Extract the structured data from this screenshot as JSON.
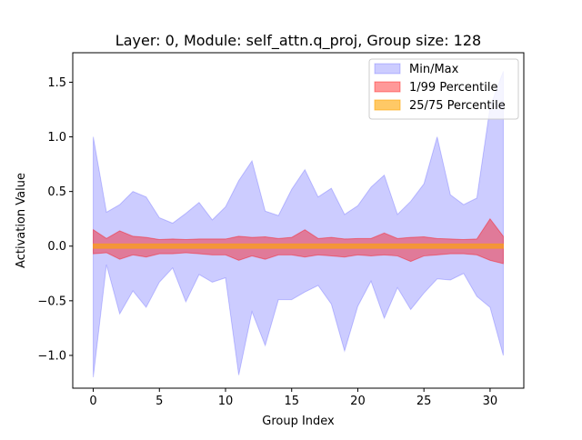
{
  "chart_data": {
    "type": "area",
    "title": "Layer: 0, Module: self_attn.q_proj,  Group size: 128",
    "xlabel": "Group Index",
    "ylabel": "Activation Value",
    "xlim": [
      -1.55,
      32.55
    ],
    "ylim": [
      -1.3,
      1.77
    ],
    "x_ticks": [
      0,
      5,
      10,
      15,
      20,
      25,
      30
    ],
    "y_ticks": [
      -1.0,
      -0.5,
      0.0,
      0.5,
      1.0,
      1.5
    ],
    "x_tick_labels": [
      "0",
      "5",
      "10",
      "15",
      "20",
      "25",
      "30"
    ],
    "y_tick_labels": [
      "−1.0",
      "−0.5",
      "0.0",
      "0.5",
      "1.0",
      "1.5"
    ],
    "grid": false,
    "legend_position": "top-right",
    "x": [
      0,
      1,
      2,
      3,
      4,
      5,
      6,
      7,
      8,
      9,
      10,
      11,
      12,
      13,
      14,
      15,
      16,
      17,
      18,
      19,
      20,
      21,
      22,
      23,
      24,
      25,
      26,
      27,
      28,
      29,
      30,
      31
    ],
    "series": [
      {
        "name": "Min/Max",
        "color": "#0000ff",
        "opacity": 0.2,
        "upper": [
          1.0,
          0.31,
          0.38,
          0.5,
          0.45,
          0.26,
          0.21,
          0.3,
          0.4,
          0.24,
          0.36,
          0.6,
          0.78,
          0.32,
          0.28,
          0.52,
          0.7,
          0.45,
          0.53,
          0.29,
          0.37,
          0.54,
          0.65,
          0.29,
          0.41,
          0.57,
          1.0,
          0.47,
          0.38,
          0.44,
          1.27,
          1.6
        ],
        "lower": [
          -1.2,
          -0.17,
          -0.62,
          -0.41,
          -0.56,
          -0.33,
          -0.2,
          -0.51,
          -0.26,
          -0.33,
          -0.29,
          -1.18,
          -0.6,
          -0.91,
          -0.49,
          -0.49,
          -0.42,
          -0.36,
          -0.53,
          -0.96,
          -0.55,
          -0.32,
          -0.66,
          -0.38,
          -0.58,
          -0.43,
          -0.3,
          -0.31,
          -0.25,
          -0.46,
          -0.56,
          -1.0
        ]
      },
      {
        "name": "1/99 Percentile",
        "color": "#ff0000",
        "opacity": 0.4,
        "upper": [
          0.15,
          0.07,
          0.14,
          0.09,
          0.08,
          0.06,
          0.065,
          0.06,
          0.065,
          0.065,
          0.065,
          0.09,
          0.08,
          0.085,
          0.07,
          0.08,
          0.15,
          0.07,
          0.08,
          0.065,
          0.07,
          0.07,
          0.12,
          0.07,
          0.08,
          0.085,
          0.07,
          0.065,
          0.06,
          0.065,
          0.25,
          0.09
        ],
        "lower": [
          -0.07,
          -0.06,
          -0.12,
          -0.08,
          -0.1,
          -0.07,
          -0.07,
          -0.06,
          -0.07,
          -0.08,
          -0.08,
          -0.13,
          -0.09,
          -0.12,
          -0.08,
          -0.08,
          -0.1,
          -0.08,
          -0.09,
          -0.1,
          -0.08,
          -0.09,
          -0.08,
          -0.09,
          -0.14,
          -0.09,
          -0.08,
          -0.07,
          -0.07,
          -0.08,
          -0.13,
          -0.16
        ]
      },
      {
        "name": "25/75 Percentile",
        "color": "#ffa500",
        "opacity": 0.6,
        "upper": [
          0.02,
          0.02,
          0.02,
          0.02,
          0.02,
          0.02,
          0.02,
          0.02,
          0.02,
          0.02,
          0.02,
          0.02,
          0.02,
          0.02,
          0.02,
          0.02,
          0.02,
          0.02,
          0.02,
          0.02,
          0.02,
          0.02,
          0.02,
          0.02,
          0.02,
          0.02,
          0.02,
          0.02,
          0.02,
          0.02,
          0.02,
          0.02
        ],
        "lower": [
          -0.02,
          -0.02,
          -0.02,
          -0.02,
          -0.02,
          -0.02,
          -0.02,
          -0.02,
          -0.02,
          -0.02,
          -0.02,
          -0.02,
          -0.02,
          -0.02,
          -0.02,
          -0.02,
          -0.02,
          -0.02,
          -0.02,
          -0.02,
          -0.02,
          -0.02,
          -0.02,
          -0.02,
          -0.02,
          -0.02,
          -0.02,
          -0.02,
          -0.02,
          -0.02,
          -0.02,
          -0.02
        ]
      }
    ]
  }
}
